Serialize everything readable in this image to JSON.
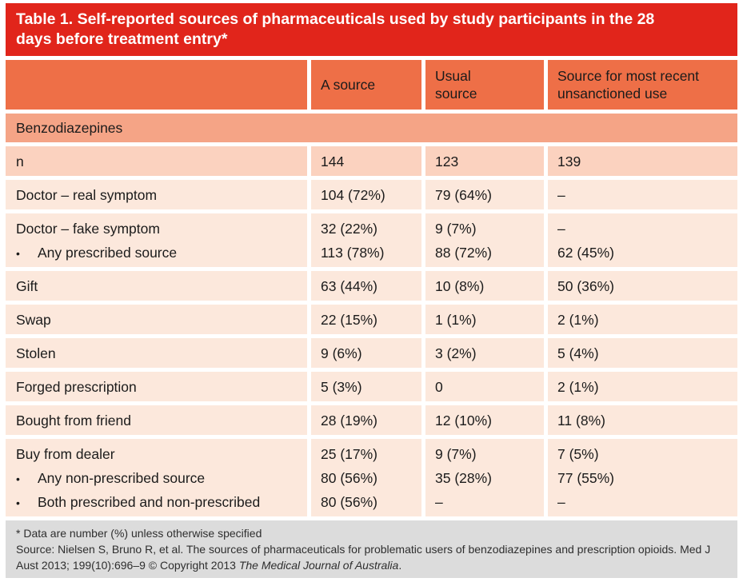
{
  "colors": {
    "title_bar": "#e1251b",
    "header": "#ee6f47",
    "section_row": "#f5a486",
    "n_row": "#fbd2bf",
    "data_row": "#fce8dc",
    "footer": "#dcdcdc",
    "title_text": "#ffffff",
    "body_text": "#1b1b1b"
  },
  "table": {
    "title": "Table 1. Self-reported sources of pharmaceuticals used by study participants in the 28 days before treatment entry*",
    "columns": [
      "",
      "A source",
      "Usual source",
      "Source for most recent unsanctioned use"
    ],
    "section_header": "Benzodiazepines",
    "bullet_glyph": "•",
    "rows": [
      {
        "shade": "medium",
        "label_lines": [
          {
            "text": "n",
            "bullet": false
          }
        ],
        "cells": [
          [
            "144"
          ],
          [
            "123"
          ],
          [
            "139"
          ]
        ]
      },
      {
        "shade": "light",
        "label_lines": [
          {
            "text": "Doctor – real symptom",
            "bullet": false
          }
        ],
        "cells": [
          [
            "104 (72%)"
          ],
          [
            "79 (64%)"
          ],
          [
            "–"
          ]
        ]
      },
      {
        "shade": "light",
        "label_lines": [
          {
            "text": "Doctor – fake symptom",
            "bullet": false
          },
          {
            "text": "Any prescribed source",
            "bullet": true
          }
        ],
        "cells": [
          [
            "32 (22%)",
            "113 (78%)"
          ],
          [
            "9 (7%)",
            "88 (72%)"
          ],
          [
            "–",
            "62 (45%)"
          ]
        ]
      },
      {
        "shade": "light",
        "label_lines": [
          {
            "text": "Gift",
            "bullet": false
          }
        ],
        "cells": [
          [
            "63 (44%)"
          ],
          [
            "10 (8%)"
          ],
          [
            "50 (36%)"
          ]
        ]
      },
      {
        "shade": "light",
        "label_lines": [
          {
            "text": "Swap",
            "bullet": false
          }
        ],
        "cells": [
          [
            "22 (15%)"
          ],
          [
            "1 (1%)"
          ],
          [
            "2 (1%)"
          ]
        ]
      },
      {
        "shade": "light",
        "label_lines": [
          {
            "text": "Stolen",
            "bullet": false
          }
        ],
        "cells": [
          [
            "9 (6%)"
          ],
          [
            "3 (2%)"
          ],
          [
            "5 (4%)"
          ]
        ]
      },
      {
        "shade": "light",
        "label_lines": [
          {
            "text": "Forged prescription",
            "bullet": false
          }
        ],
        "cells": [
          [
            "5 (3%)"
          ],
          [
            "0"
          ],
          [
            "2 (1%)"
          ]
        ]
      },
      {
        "shade": "light",
        "label_lines": [
          {
            "text": "Bought from friend",
            "bullet": false
          }
        ],
        "cells": [
          [
            "28 (19%)"
          ],
          [
            "12 (10%)"
          ],
          [
            "11 (8%)"
          ]
        ]
      },
      {
        "shade": "light",
        "label_lines": [
          {
            "text": "Buy from dealer",
            "bullet": false
          },
          {
            "text": "Any non-prescribed source",
            "bullet": true
          },
          {
            "text": "Both prescribed and non-prescribed",
            "bullet": true
          }
        ],
        "cells": [
          [
            "25 (17%)",
            "80 (56%)",
            "80 (56%)"
          ],
          [
            "9 (7%)",
            "35 (28%)",
            "–"
          ],
          [
            "7 (5%)",
            "77 (55%)",
            "–"
          ]
        ]
      }
    ]
  },
  "footer": {
    "footnote": "* Data are number (%) unless otherwise specified",
    "source_prefix": "Source: Nielsen S, Bruno R, et al. The sources of pharmaceuticals for problematic users of benzodiazepines and prescription opioids. Med J Aust 2013; 199(10):696–9 © Copyright 2013 ",
    "source_italic": "The Medical Journal of Australia",
    "source_suffix": "."
  }
}
